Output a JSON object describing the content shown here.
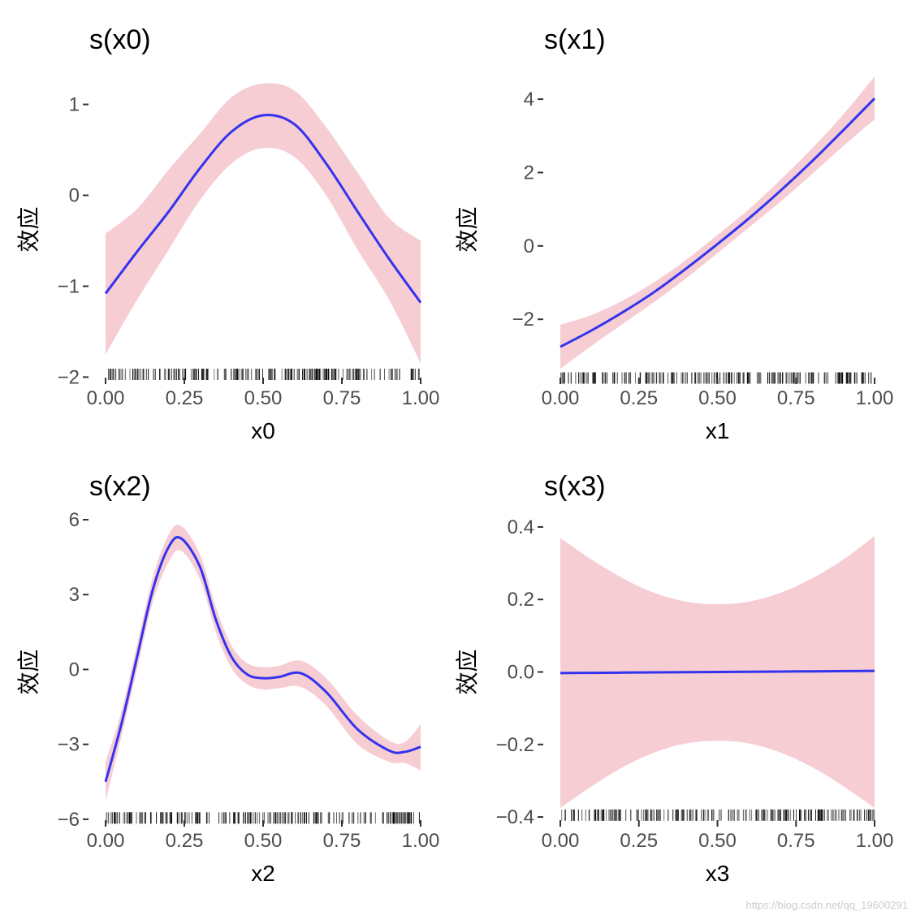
{
  "style": {
    "band_color": "#f4b8c2",
    "line_color": "#3333ee",
    "rug_color": "#000000"
  },
  "watermark": "https://blog.csdn.net/qq_19600291",
  "chart_data": [
    {
      "type": "line",
      "title": "s(x0)",
      "xlabel": "x0",
      "ylabel": "效应",
      "xlim": [
        0,
        1
      ],
      "ylim": [
        -2.05,
        1.3
      ],
      "xticks": [
        0,
        0.25,
        0.5,
        0.75,
        1
      ],
      "xtick_labels": [
        "0.00",
        "0.25",
        "0.50",
        "0.75",
        "1.00"
      ],
      "yticks": [
        -2,
        -1,
        0,
        1
      ],
      "ytick_labels": [
        "−2",
        "−1",
        "0",
        "1"
      ],
      "x": [
        0,
        0.1,
        0.2,
        0.3,
        0.4,
        0.5,
        0.6,
        0.7,
        0.8,
        0.9,
        1.0
      ],
      "fit": [
        -1.08,
        -0.62,
        -0.18,
        0.3,
        0.7,
        0.88,
        0.78,
        0.35,
        -0.18,
        -0.7,
        -1.18
      ],
      "lower": [
        -1.75,
        -1.15,
        -0.6,
        -0.05,
        0.35,
        0.52,
        0.42,
        0.0,
        -0.6,
        -1.15,
        -1.85
      ],
      "upper": [
        -0.42,
        -0.15,
        0.28,
        0.68,
        1.08,
        1.23,
        1.15,
        0.75,
        0.25,
        -0.25,
        -0.5
      ],
      "rug_y": -1.97,
      "grid": false
    },
    {
      "type": "line",
      "title": "s(x1)",
      "xlabel": "x1",
      "ylabel": "效应",
      "xlim": [
        0,
        1
      ],
      "ylim": [
        -3.7,
        4.6
      ],
      "xticks": [
        0,
        0.25,
        0.5,
        0.75,
        1
      ],
      "xtick_labels": [
        "0.00",
        "0.25",
        "0.50",
        "0.75",
        "1.00"
      ],
      "yticks": [
        -2,
        0,
        2,
        4
      ],
      "ytick_labels": [
        "−2",
        "0",
        "2",
        "4"
      ],
      "x": [
        0,
        0.1,
        0.2,
        0.3,
        0.4,
        0.5,
        0.6,
        0.7,
        0.8,
        0.9,
        1.0
      ],
      "fit": [
        -2.75,
        -2.3,
        -1.8,
        -1.25,
        -0.62,
        0.05,
        0.75,
        1.5,
        2.3,
        3.15,
        4.02
      ],
      "lower": [
        -3.35,
        -2.72,
        -2.12,
        -1.52,
        -0.88,
        -0.2,
        0.5,
        1.2,
        1.95,
        2.72,
        3.45
      ],
      "upper": [
        -2.15,
        -1.88,
        -1.48,
        -0.98,
        -0.38,
        0.3,
        1.0,
        1.8,
        2.65,
        3.58,
        4.62
      ],
      "rug_y": -3.6,
      "grid": false
    },
    {
      "type": "line",
      "title": "s(x2)",
      "xlabel": "x2",
      "ylabel": "效应",
      "xlim": [
        0,
        1
      ],
      "ylim": [
        -6.2,
        6.0
      ],
      "xticks": [
        0,
        0.25,
        0.5,
        0.75,
        1
      ],
      "xtick_labels": [
        "0.00",
        "0.25",
        "0.50",
        "0.75",
        "1.00"
      ],
      "yticks": [
        -6,
        -3,
        0,
        3,
        6
      ],
      "ytick_labels": [
        "−6",
        "−3",
        "0",
        "3",
        "6"
      ],
      "x": [
        0,
        0.05,
        0.1,
        0.15,
        0.2,
        0.24,
        0.3,
        0.35,
        0.4,
        0.45,
        0.5,
        0.55,
        0.62,
        0.7,
        0.8,
        0.9,
        0.95,
        1.0
      ],
      "fit": [
        -4.5,
        -2.2,
        0.5,
        3.2,
        4.9,
        5.25,
        4.1,
        2.0,
        0.5,
        -0.2,
        -0.35,
        -0.3,
        -0.15,
        -0.9,
        -2.4,
        -3.25,
        -3.3,
        -3.1
      ],
      "lower": [
        -5.3,
        -2.7,
        0.0,
        2.7,
        4.3,
        4.75,
        3.6,
        1.5,
        0.05,
        -0.6,
        -0.8,
        -0.75,
        -0.7,
        -1.45,
        -3.0,
        -3.7,
        -3.75,
        -4.05
      ],
      "upper": [
        -3.7,
        -1.7,
        1.0,
        3.7,
        5.4,
        5.75,
        4.6,
        2.5,
        0.95,
        0.25,
        0.1,
        0.15,
        0.35,
        -0.35,
        -1.85,
        -2.85,
        -2.9,
        -2.2
      ],
      "rug_y": -5.95,
      "grid": false
    },
    {
      "type": "line",
      "title": "s(x3)",
      "xlabel": "x3",
      "ylabel": "效应",
      "xlim": [
        0,
        1
      ],
      "ylim": [
        -0.42,
        0.42
      ],
      "xticks": [
        0,
        0.25,
        0.5,
        0.75,
        1
      ],
      "xtick_labels": [
        "0.00",
        "0.25",
        "0.50",
        "0.75",
        "1.00"
      ],
      "yticks": [
        -0.4,
        -0.2,
        0.0,
        0.2,
        0.4
      ],
      "ytick_labels": [
        "−0.4",
        "−0.2",
        "0.0",
        "0.2",
        "0.4"
      ],
      "x": [
        0,
        0.1,
        0.2,
        0.3,
        0.4,
        0.5,
        0.6,
        0.7,
        0.8,
        0.9,
        1.0
      ],
      "fit": [
        -0.003,
        -0.0024,
        -0.0018,
        -0.0012,
        -0.0006,
        0.0,
        0.0006,
        0.0012,
        0.0018,
        0.0024,
        0.003
      ],
      "lower": [
        -0.375,
        -0.315,
        -0.262,
        -0.222,
        -0.197,
        -0.19,
        -0.197,
        -0.222,
        -0.262,
        -0.315,
        -0.375
      ],
      "upper": [
        0.37,
        0.31,
        0.258,
        0.218,
        0.194,
        0.187,
        0.194,
        0.218,
        0.258,
        0.31,
        0.375
      ],
      "rug_y": -0.395,
      "grid": false
    }
  ]
}
